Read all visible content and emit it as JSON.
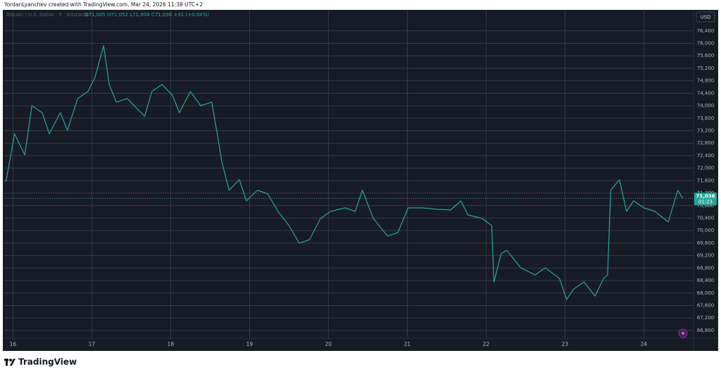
{
  "header": {
    "author_line": "YordanLyanchev created with TradingView.com, Mar 24, 2026 11:38 UTC+2"
  },
  "chart_data": {
    "type": "line",
    "symbol": "Bitcoin / U.S. Dollar · 5 · Bitstamp",
    "ohlc": "O71,005 H71,052 L71,004 C71,036 +31 (+0.04%)",
    "currency": "USD",
    "last_price": {
      "value": 71036,
      "label": "71,036"
    },
    "countdown": "01:23",
    "color": "#26a69a",
    "grid": true,
    "x": [
      15.91,
      16.02,
      16.15,
      16.24,
      16.37,
      16.46,
      16.6,
      16.69,
      16.82,
      16.95,
      17.04,
      17.15,
      17.22,
      17.31,
      17.45,
      17.58,
      17.67,
      17.76,
      17.89,
      18.02,
      18.11,
      18.25,
      18.38,
      18.52,
      18.59,
      18.65,
      18.74,
      18.87,
      18.96,
      19.1,
      19.23,
      19.36,
      19.5,
      19.63,
      19.76,
      19.9,
      20.03,
      20.21,
      20.34,
      20.43,
      20.57,
      20.75,
      20.88,
      21.01,
      21.19,
      21.37,
      21.55,
      21.68,
      21.77,
      21.95,
      22.07,
      22.1,
      22.19,
      22.26,
      22.44,
      22.62,
      22.75,
      22.93,
      23.02,
      23.11,
      23.24,
      23.38,
      23.49,
      23.54,
      23.58,
      23.69,
      23.78,
      23.87,
      24.0,
      24.14,
      24.31,
      24.43,
      24.49
    ],
    "values": [
      71564,
      73100,
      72422,
      74004,
      73778,
      73100,
      73778,
      73213,
      74230,
      74456,
      74908,
      75925,
      74682,
      74117,
      74230,
      73891,
      73665,
      74456,
      74682,
      74343,
      73778,
      74456,
      74004,
      74117,
      73100,
      72196,
      71292,
      71631,
      70953,
      71292,
      71179,
      70614,
      70162,
      69597,
      69710,
      70388,
      70614,
      70727,
      70614,
      71292,
      70388,
      69823,
      69936,
      70727,
      70727,
      70682,
      70660,
      70953,
      70501,
      70388,
      70162,
      68354,
      69258,
      69371,
      68806,
      68580,
      68806,
      68467,
      67789,
      68128,
      68354,
      67902,
      68467,
      68580,
      71292,
      71631,
      70614,
      70953,
      70727,
      70614,
      70275,
      71292,
      71036
    ],
    "xlim": [
      15.88,
      24.63
    ],
    "xticks": [
      16,
      17,
      18,
      19,
      20,
      21,
      22,
      23,
      24
    ],
    "ylim": [
      66550,
      77050
    ],
    "yticks": [
      {
        "value": 66800,
        "label": "66,800"
      },
      {
        "value": 67200,
        "label": "67,200"
      },
      {
        "value": 67600,
        "label": "67,600"
      },
      {
        "value": 68000,
        "label": "68,000"
      },
      {
        "value": 68400,
        "label": "68,400"
      },
      {
        "value": 68800,
        "label": "68,800"
      },
      {
        "value": 69200,
        "label": "69,200"
      },
      {
        "value": 69600,
        "label": "69,600"
      },
      {
        "value": 70000,
        "label": "70,000"
      },
      {
        "value": 70400,
        "label": "70,400"
      },
      {
        "value": 70800,
        "label": "70,800"
      },
      {
        "value": 71200,
        "label": "71,200"
      },
      {
        "value": 71600,
        "label": "71,600"
      },
      {
        "value": 72000,
        "label": "72,000"
      },
      {
        "value": 72400,
        "label": "72,400"
      },
      {
        "value": 72800,
        "label": "72,800"
      },
      {
        "value": 73200,
        "label": "73,200"
      },
      {
        "value": 73600,
        "label": "73,600"
      },
      {
        "value": 74000,
        "label": "74,000"
      },
      {
        "value": 74400,
        "label": "74,400"
      },
      {
        "value": 74800,
        "label": "74,800"
      },
      {
        "value": 75200,
        "label": "75,200"
      },
      {
        "value": 75600,
        "label": "75,600"
      },
      {
        "value": 76000,
        "label": "76,000"
      },
      {
        "value": 76400,
        "label": "76,400"
      }
    ]
  },
  "footer": {
    "brand": "TradingView"
  }
}
